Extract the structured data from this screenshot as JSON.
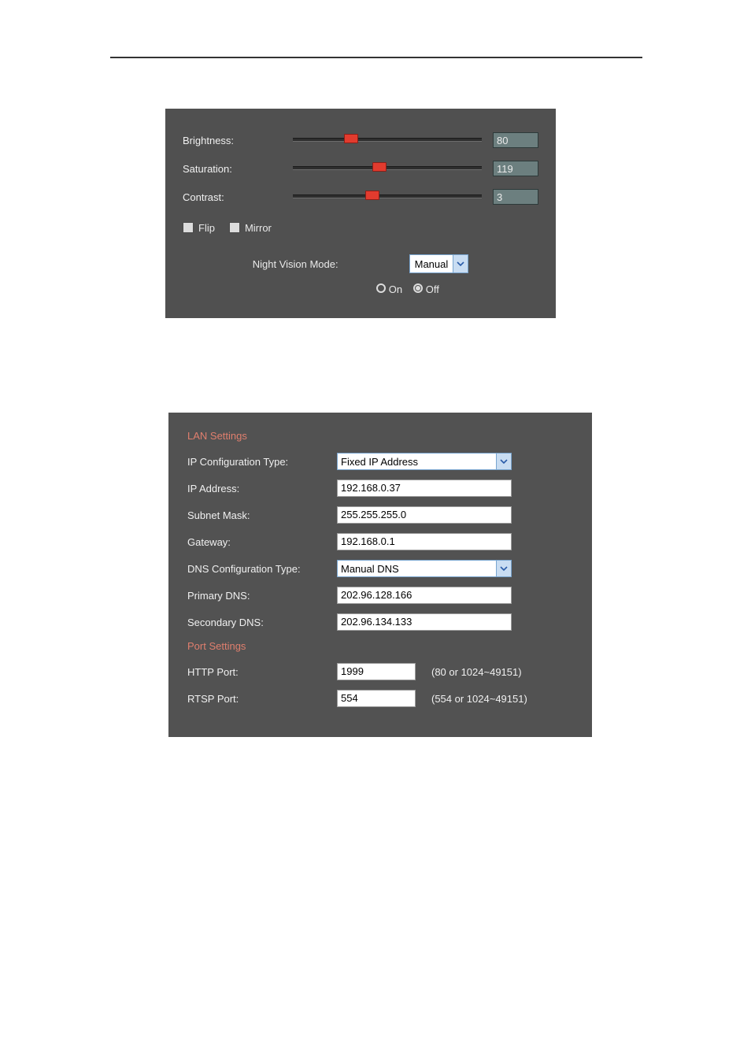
{
  "image_settings": {
    "brightness": {
      "label": "Brightness:",
      "value": "80",
      "percent": 31
    },
    "saturation": {
      "label": "Saturation:",
      "value": "119",
      "percent": 46
    },
    "contrast": {
      "label": "Contrast:",
      "value": "3",
      "percent": 42
    },
    "flip_label": "Flip",
    "mirror_label": "Mirror",
    "night_vision_label": "Night Vision Mode:",
    "night_vision_value": "Manual",
    "on_label": "On",
    "off_label": "Off",
    "slider_thumb_color": "#e23b2e"
  },
  "lan": {
    "section_title": "LAN Settings",
    "ip_config_type_label": "IP Configuration Type:",
    "ip_config_type_value": "Fixed IP Address",
    "ip_address_label": "IP Address:",
    "ip_address_value": "192.168.0.37",
    "subnet_mask_label": "Subnet Mask:",
    "subnet_mask_value": "255.255.255.0",
    "gateway_label": "Gateway:",
    "gateway_value": "192.168.0.1",
    "dns_config_type_label": "DNS Configuration Type:",
    "dns_config_type_value": "Manual DNS",
    "primary_dns_label": "Primary DNS:",
    "primary_dns_value": "202.96.128.166",
    "secondary_dns_label": "Secondary DNS:",
    "secondary_dns_value": "202.96.134.133"
  },
  "port": {
    "section_title": "Port Settings",
    "http_port_label": "HTTP Port:",
    "http_port_value": "1999",
    "http_port_hint": "(80 or 1024~49151)",
    "rtsp_port_label": "RTSP Port:",
    "rtsp_port_value": "554",
    "rtsp_port_hint": "(554 or 1024~49151)"
  },
  "style": {
    "panel_bg": "#505050",
    "section_title_color": "#e07f6e",
    "select_border": "#7aa6d0",
    "select_arrow_bg": "#c9ddf2",
    "valbox_bg": "#6c7f7f"
  }
}
